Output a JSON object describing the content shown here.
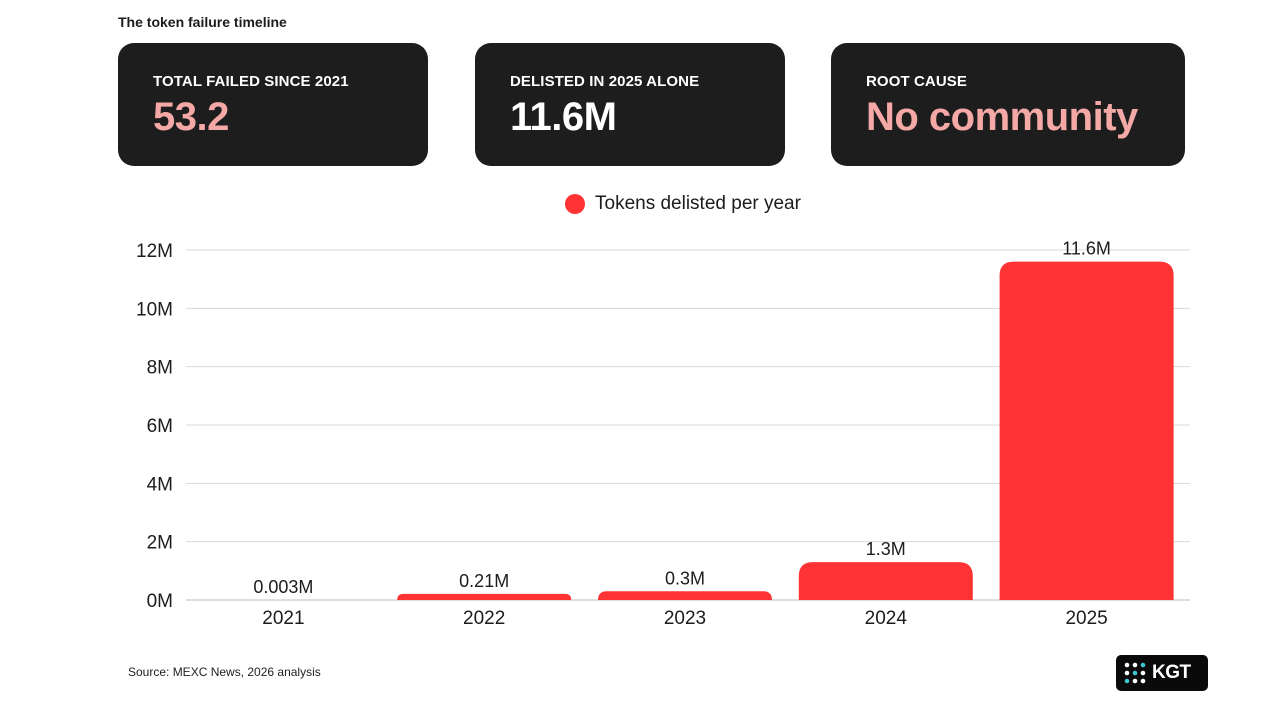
{
  "header": {
    "title": "The token failure timeline"
  },
  "stats": [
    {
      "label": "TOTAL FAILED SINCE 2021",
      "value": "53.2",
      "value_color": "#f4a9a6"
    },
    {
      "label": "DELISTED IN 2025 ALONE",
      "value": "11.6M",
      "value_color": "#ffffff"
    },
    {
      "label": "ROOT CAUSE",
      "value": "No community",
      "value_color": "#f4a9a6"
    }
  ],
  "colors": {
    "bar": "#ff3333",
    "grid": "#d9d9d9",
    "card_bg": "#1e1d1d",
    "text": "#1c1c1c"
  },
  "chart_data": {
    "type": "bar",
    "categories": [
      "2021",
      "2022",
      "2023",
      "2024",
      "2025"
    ],
    "series": [
      {
        "name": "Tokens delisted per year",
        "values": [
          0.003,
          0.21,
          0.3,
          1.3,
          11.6
        ],
        "labels": [
          "0.003M",
          "0.21M",
          "0.3M",
          "1.3M",
          "11.6M"
        ],
        "color": "#ff3333"
      }
    ],
    "ylim": [
      0,
      12
    ],
    "yticks": [
      0,
      2,
      4,
      6,
      8,
      10,
      12
    ],
    "ytick_labels": [
      "0M",
      "2M",
      "4M",
      "6M",
      "8M",
      "10M",
      "12M"
    ],
    "grid": true,
    "legend": "top-center"
  },
  "footer": {
    "source": "Source: MEXC News, 2026 analysis",
    "logo_text": "KGT"
  }
}
